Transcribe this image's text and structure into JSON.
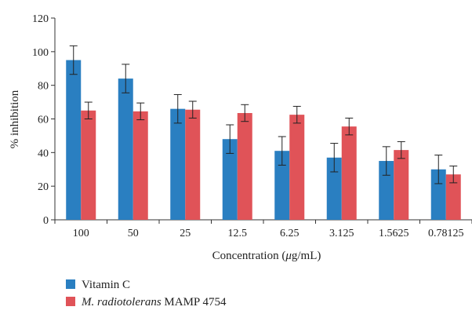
{
  "chart_data": {
    "type": "bar",
    "title": "",
    "xlabel": "Concentration (μg/mL)",
    "ylabel": "% inhibition",
    "ylim": [
      0,
      120
    ],
    "yticks": [
      0,
      20,
      40,
      60,
      80,
      100,
      120
    ],
    "categories": [
      "100",
      "50",
      "25",
      "12.5",
      "6.25",
      "3.125",
      "1.5625",
      "0.78125"
    ],
    "series": [
      {
        "name": "Vitamin C",
        "color": "#2a7fc1",
        "values": [
          95,
          84,
          66,
          48,
          41,
          37,
          35,
          30
        ],
        "errors": [
          8.5,
          8.5,
          8.5,
          8.5,
          8.5,
          8.5,
          8.5,
          8.5
        ]
      },
      {
        "name": "M. radiotolerans MAMP 4754",
        "color": "#e05358",
        "values": [
          65,
          64.5,
          65.5,
          63.5,
          62.5,
          55.5,
          41.5,
          27
        ],
        "errors": [
          5,
          5,
          5,
          5,
          5,
          5,
          5,
          5
        ]
      }
    ],
    "grid": false,
    "legend_position": "bottom-left"
  }
}
